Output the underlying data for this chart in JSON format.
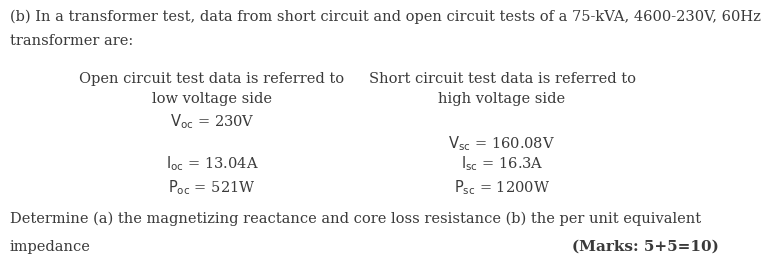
{
  "bg_color": "#ffffff",
  "text_color": "#3a3a3a",
  "title_line1": "(b) In a transformer test, data from short circuit and open circuit tests of a 75-kVA, 4600-230V, 60Hz",
  "title_line2": "transformer are:",
  "oc_header1": "Open circuit test data is referred to",
  "oc_header2": "low voltage side",
  "oc_v": "$\\mathrm{V_{oc}}$ = 230V",
  "oc_i": "$\\mathrm{I_{oc}}$ = 13.04A",
  "oc_p": "$\\mathrm{P_{oc}}$ = 521W",
  "sc_header1": "Short circuit test data is referred to",
  "sc_header2": "high voltage side",
  "sc_v": "$\\mathrm{V_{sc}}$ = 160.08V",
  "sc_i": "$\\mathrm{I_{sc}}$ = 16.3A",
  "sc_p": "$\\mathrm{P_{sc}}$ = 1200W",
  "footer_line1": "Determine (a) the magnetizing reactance and core loss resistance (b) the per unit equivalent",
  "footer_line2": "impedance",
  "marks": "(Marks: 5+5=10)",
  "fs": 10.5,
  "fs_marks": 11.0
}
